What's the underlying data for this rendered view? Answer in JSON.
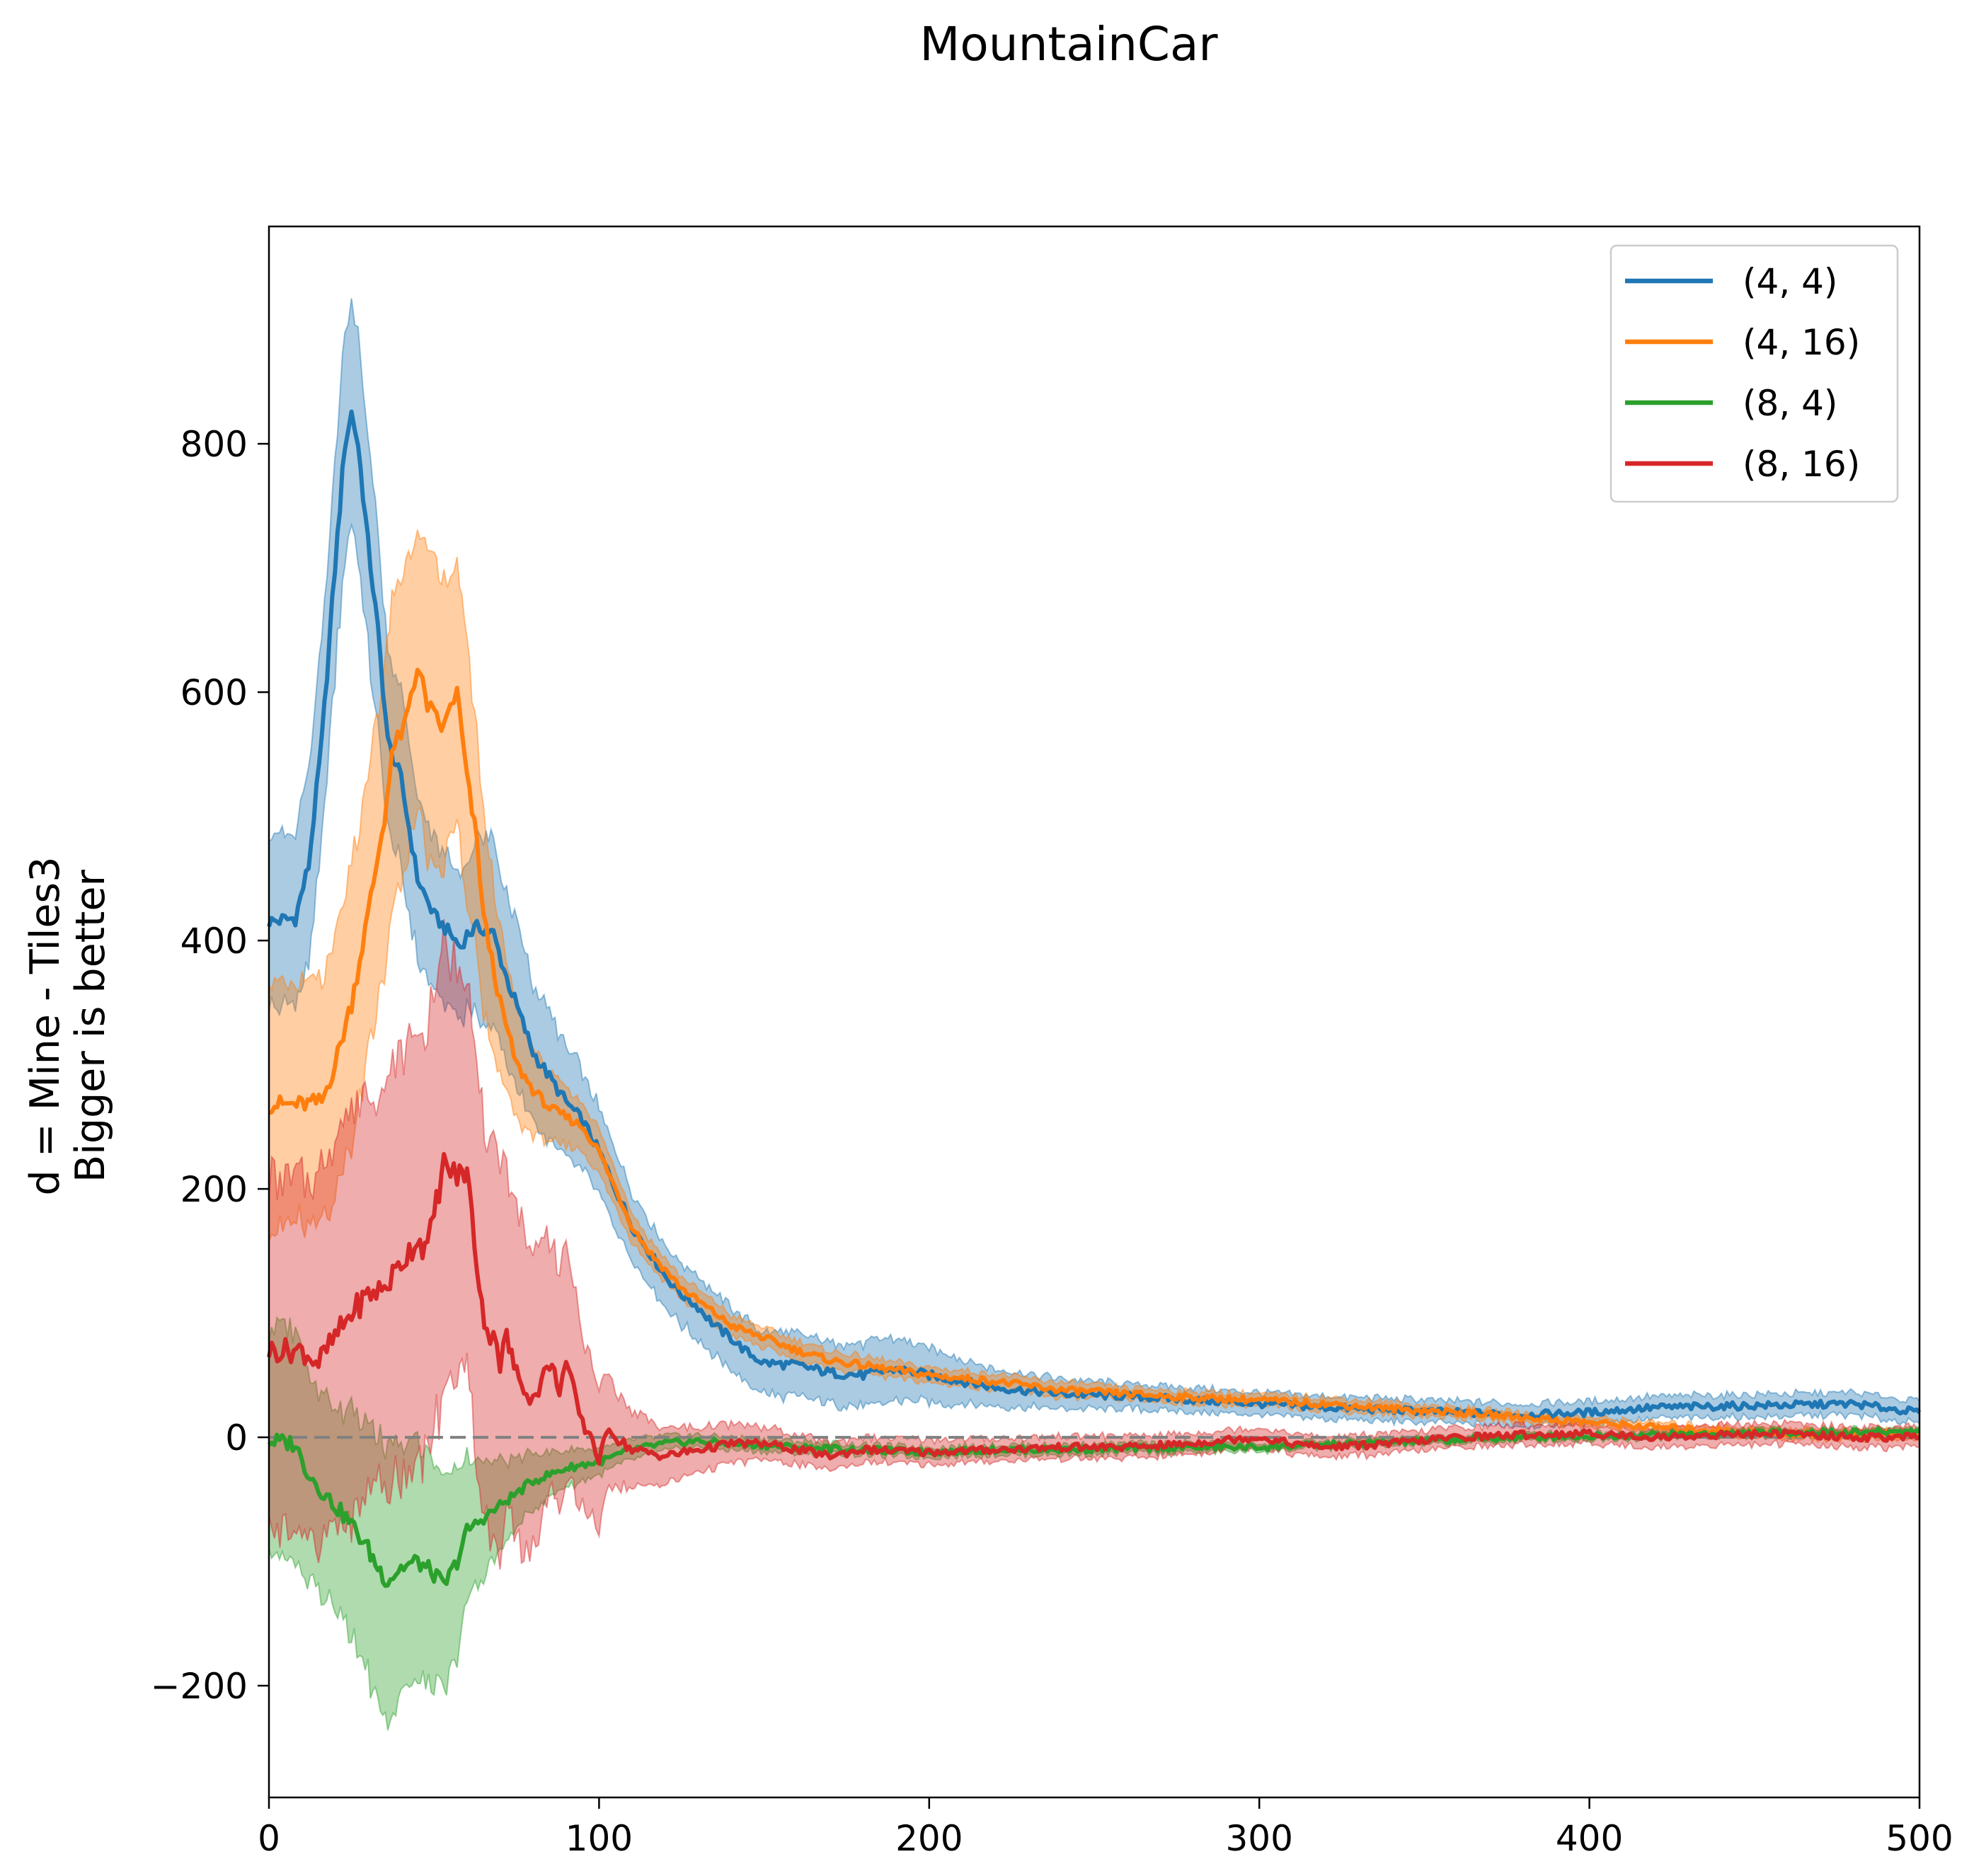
{
  "chart_data": {
    "type": "line",
    "title": "MountainCar",
    "xlabel": "",
    "ylabel": [
      "d = Mine - Tiles3",
      "Bigger is better"
    ],
    "xlim": [
      0,
      500
    ],
    "ylim": [
      -290,
      975
    ],
    "xticks": [
      0,
      100,
      200,
      300,
      400,
      500
    ],
    "yticks": [
      -200,
      0,
      200,
      400,
      600,
      800
    ],
    "ytick_labels": [
      "−200",
      "0",
      "200",
      "400",
      "600",
      "800"
    ],
    "grid": false,
    "legend_position": "top-right",
    "reference_line": {
      "y": 0,
      "style": "dashed",
      "color": "#808080"
    },
    "series": [
      {
        "name": "(4, 4)",
        "color": "#1f77b4",
        "x": [
          0,
          8,
          12,
          16,
          20,
          23,
          25,
          27,
          30,
          33,
          36,
          40,
          45,
          50,
          55,
          58,
          60,
          63,
          65,
          68,
          72,
          76,
          80,
          85,
          90,
          95,
          100,
          105,
          110,
          115,
          120,
          125,
          130,
          135,
          140,
          145,
          150,
          160,
          170,
          180,
          190,
          200,
          210,
          220,
          240,
          260,
          280,
          300,
          320,
          340,
          360,
          380,
          400,
          420,
          440,
          460,
          480,
          500
        ],
        "values": [
          415,
          418,
          460,
          560,
          700,
          800,
          825,
          800,
          720,
          650,
          560,
          530,
          450,
          420,
          405,
          395,
          405,
          410,
          410,
          405,
          370,
          340,
          310,
          290,
          270,
          255,
          230,
          200,
          170,
          150,
          130,
          115,
          105,
          90,
          80,
          68,
          60,
          58,
          52,
          50,
          55,
          50,
          45,
          40,
          35,
          33,
          30,
          27,
          24,
          22,
          20,
          18,
          20,
          24,
          25,
          26,
          27,
          20
        ],
        "band_width": [
          70,
          70,
          75,
          80,
          85,
          90,
          90,
          90,
          85,
          80,
          75,
          70,
          65,
          60,
          60,
          60,
          60,
          70,
          75,
          75,
          70,
          65,
          55,
          50,
          45,
          40,
          35,
          30,
          28,
          25,
          25,
          25,
          25,
          25,
          25,
          25,
          25,
          25,
          25,
          25,
          25,
          22,
          18,
          15,
          12,
          10,
          10,
          9,
          9,
          9,
          9,
          9,
          9,
          9,
          9,
          9,
          9,
          9
        ]
      },
      {
        "name": "(4, 16)",
        "color": "#ff7f0e",
        "x": [
          0,
          10,
          16,
          20,
          25,
          30,
          35,
          38,
          40,
          43,
          45,
          48,
          50,
          53,
          55,
          57,
          60,
          63,
          65,
          70,
          75,
          80,
          85,
          90,
          95,
          100,
          105,
          110,
          115,
          120,
          125,
          130,
          135,
          140,
          150,
          160,
          170,
          180,
          200,
          220,
          240,
          260,
          280,
          300,
          320,
          340,
          360,
          380,
          400,
          420,
          440,
          460,
          480,
          500
        ],
        "values": [
          268,
          268,
          270,
          300,
          350,
          420,
          500,
          560,
          560,
          600,
          620,
          590,
          580,
          570,
          590,
          600,
          530,
          480,
          420,
          350,
          300,
          280,
          265,
          258,
          250,
          230,
          200,
          170,
          150,
          135,
          120,
          110,
          100,
          90,
          80,
          70,
          62,
          58,
          50,
          45,
          38,
          35,
          32,
          30,
          27,
          23,
          20,
          16,
          12,
          8,
          5,
          3,
          2,
          2
        ],
        "band_width": [
          95,
          95,
          95,
          100,
          110,
          115,
          120,
          125,
          125,
          120,
          120,
          120,
          115,
          115,
          110,
          105,
          100,
          90,
          80,
          60,
          45,
          35,
          28,
          24,
          20,
          18,
          15,
          12,
          10,
          9,
          9,
          9,
          9,
          8,
          8,
          8,
          7,
          7,
          6,
          6,
          6,
          5,
          5,
          5,
          5,
          5,
          4,
          4,
          4,
          4,
          4,
          4,
          4,
          4
        ]
      },
      {
        "name": "(8, 4)",
        "color": "#2ca02c",
        "x": [
          0,
          8,
          10,
          15,
          20,
          25,
          30,
          33,
          36,
          40,
          45,
          50,
          53,
          57,
          60,
          65,
          70,
          75,
          80,
          85,
          90,
          95,
          100,
          110,
          120,
          130,
          140,
          160,
          180,
          200,
          220,
          240,
          260,
          280,
          300,
          320,
          340,
          360,
          380,
          400,
          420,
          440,
          460,
          480,
          500
        ],
        "values": [
          -3,
          -5,
          -20,
          -40,
          -55,
          -70,
          -90,
          -105,
          -115,
          -105,
          -100,
          -110,
          -120,
          -100,
          -75,
          -65,
          -55,
          -45,
          -35,
          -30,
          -25,
          -22,
          -20,
          -10,
          -5,
          -3,
          -5,
          -8,
          -10,
          -12,
          -10,
          -10,
          -9,
          -8,
          -8,
          -6,
          -4,
          -2,
          0,
          1,
          2,
          3,
          4,
          4,
          5
        ],
        "band_width": [
          90,
          90,
          85,
          80,
          80,
          90,
          100,
          105,
          110,
          100,
          95,
          90,
          85,
          75,
          60,
          45,
          35,
          28,
          22,
          18,
          15,
          13,
          10,
          8,
          6,
          5,
          5,
          5,
          4,
          4,
          4,
          4,
          4,
          4,
          3,
          3,
          3,
          3,
          3,
          3,
          3,
          3,
          3,
          3,
          3
        ]
      },
      {
        "name": "(8, 16)",
        "color": "#d62728",
        "x": [
          0,
          10,
          15,
          20,
          25,
          30,
          35,
          40,
          45,
          48,
          50,
          53,
          55,
          57,
          60,
          63,
          66,
          68,
          70,
          72,
          75,
          78,
          80,
          85,
          88,
          90,
          93,
          95,
          98,
          100,
          103,
          105,
          110,
          120,
          130,
          140,
          150,
          160,
          170,
          180,
          200,
          220,
          240,
          260,
          280,
          290,
          300,
          310,
          320,
          340,
          360,
          380,
          400,
          420,
          440,
          460,
          480,
          500
        ],
        "values": [
          70,
          70,
          60,
          80,
          100,
          115,
          120,
          140,
          160,
          150,
          180,
          220,
          215,
          210,
          215,
          140,
          80,
          90,
          60,
          80,
          50,
          40,
          30,
          60,
          40,
          60,
          30,
          10,
          0,
          -20,
          10,
          0,
          -10,
          -15,
          -10,
          -5,
          -5,
          -10,
          -15,
          -10,
          -12,
          -10,
          -8,
          -8,
          -5,
          -2,
          0,
          -5,
          -8,
          -5,
          0,
          2,
          3,
          0,
          2,
          3,
          0,
          0
        ],
        "band_width": [
          140,
          140,
          150,
          160,
          165,
          165,
          160,
          170,
          175,
          170,
          175,
          175,
          170,
          170,
          165,
          160,
          155,
          150,
          145,
          140,
          135,
          130,
          120,
          105,
          95,
          90,
          80,
          70,
          60,
          55,
          45,
          40,
          30,
          22,
          18,
          15,
          13,
          12,
          11,
          10,
          10,
          9,
          9,
          9,
          8,
          8,
          8,
          8,
          8,
          8,
          8,
          8,
          8,
          8,
          8,
          8,
          8,
          8
        ]
      }
    ]
  }
}
